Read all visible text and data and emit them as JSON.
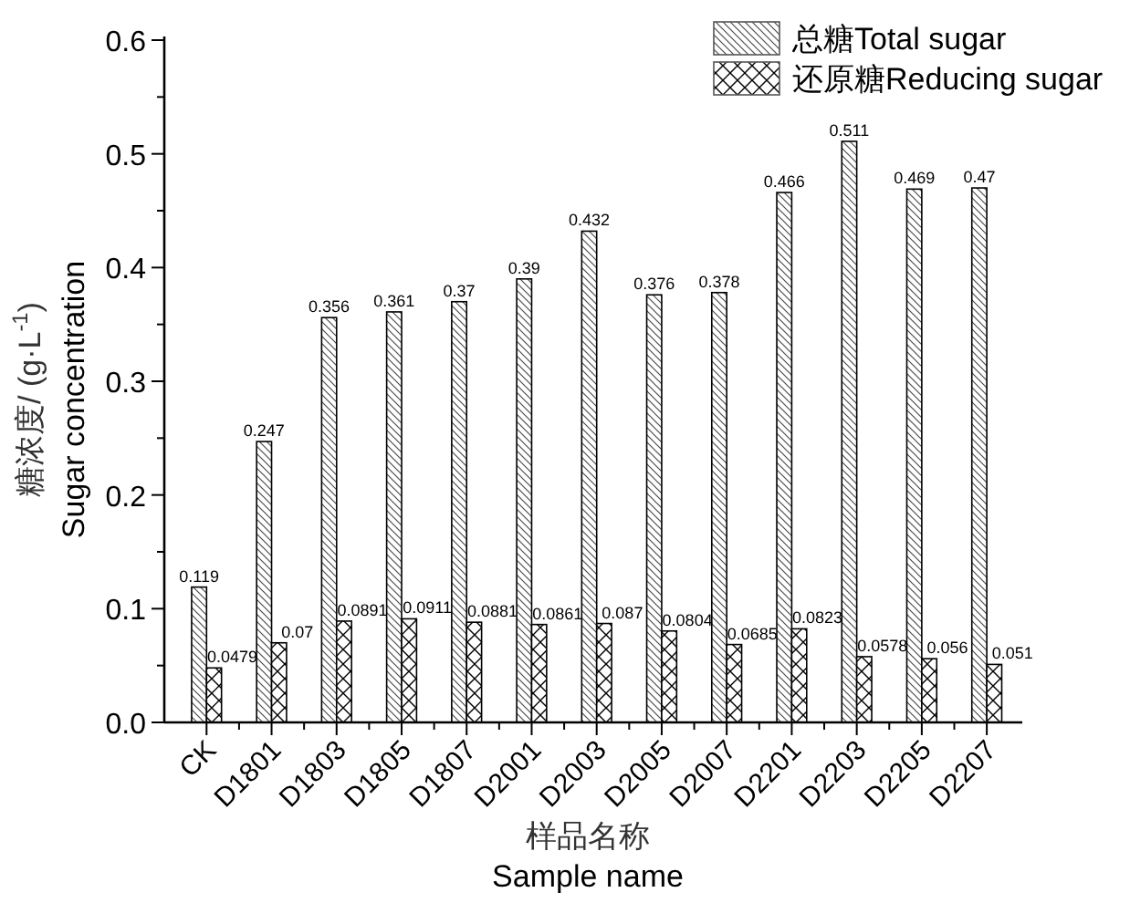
{
  "chart_data": {
    "type": "bar",
    "categories": [
      "CK",
      "D1801",
      "D1803",
      "D1805",
      "D1807",
      "D2001",
      "D2003",
      "D2005",
      "D2007",
      "D2201",
      "D2203",
      "D2205",
      "D2207"
    ],
    "series": [
      {
        "name": "总糖Total sugar",
        "color": "#000000",
        "values": [
          0.119,
          0.247,
          0.356,
          0.361,
          0.37,
          0.39,
          0.432,
          0.376,
          0.378,
          0.466,
          0.511,
          0.469,
          0.47
        ]
      },
      {
        "name": "还原糖Reducing sugar",
        "color": "#000000",
        "values": [
          0.0479,
          0.07,
          0.0891,
          0.0911,
          0.0881,
          0.0861,
          0.087,
          0.0804,
          0.0685,
          0.0823,
          0.0578,
          0.056,
          0.051
        ]
      }
    ],
    "xlabel": "样品名称\nSample name",
    "ylabel": "糖浓度/ (g·L$^{-1}$)\nSugar concentration",
    "ylim": [
      0,
      0.6
    ],
    "yticks": [
      {
        "value": 0,
        "label": "0.0"
      },
      {
        "value": 0.05,
        "label": null
      },
      0.1,
      {
        "value": 0.15,
        "label": null
      },
      0.2,
      {
        "value": 0.25,
        "label": null
      },
      0.3,
      {
        "value": 0.35,
        "label": null
      },
      0.4,
      {
        "value": 0.45,
        "label": null
      },
      0.5,
      {
        "value": 0.55,
        "label": null
      },
      0.6
    ],
    "data_labels": true,
    "legend": "top right",
    "grid": false
  }
}
